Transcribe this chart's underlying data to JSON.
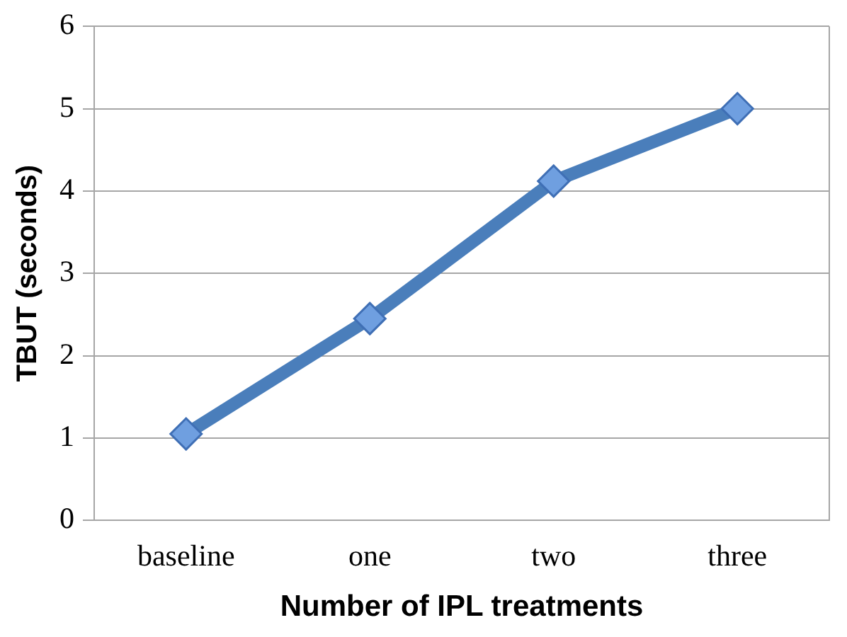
{
  "chart_data": {
    "type": "line",
    "xlabel": "Number of IPL treatments",
    "ylabel": "TBUT (seconds)",
    "categories": [
      "baseline",
      "one",
      "two",
      "three"
    ],
    "series": [
      {
        "color": "#4a7ebb",
        "values": [
          1.05,
          2.45,
          4.12,
          5.0
        ]
      }
    ],
    "ylim": [
      0,
      6
    ],
    "yticks": [
      0,
      1,
      2,
      3,
      4,
      5,
      6
    ],
    "grid": "y",
    "legend": false,
    "marker": "diamond",
    "line_style": "solid"
  }
}
